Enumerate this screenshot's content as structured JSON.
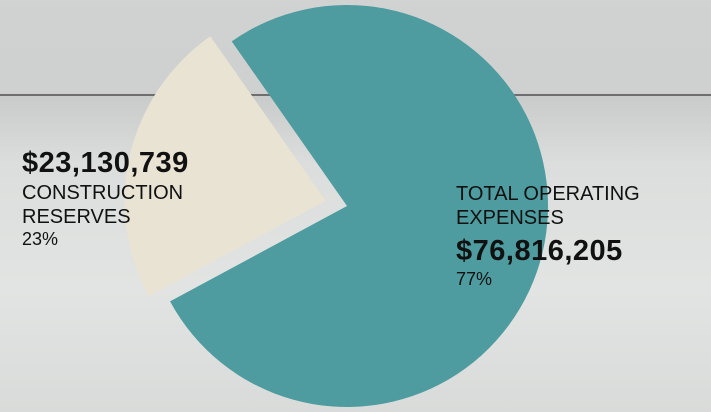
{
  "chart_data": {
    "type": "pie",
    "categories": [
      "TOTAL OPERATING EXPENSES",
      "CONSTRUCTION RESERVES"
    ],
    "values": [
      76816205,
      23130739
    ],
    "value_labels": [
      "$76,816,205",
      "$23,130,739"
    ],
    "percents": [
      77,
      23
    ],
    "percent_labels": [
      "77%",
      "23%"
    ],
    "colors": [
      "#4e9c9f",
      "#e9e3d3"
    ],
    "exploded": [
      false,
      true
    ]
  }
}
